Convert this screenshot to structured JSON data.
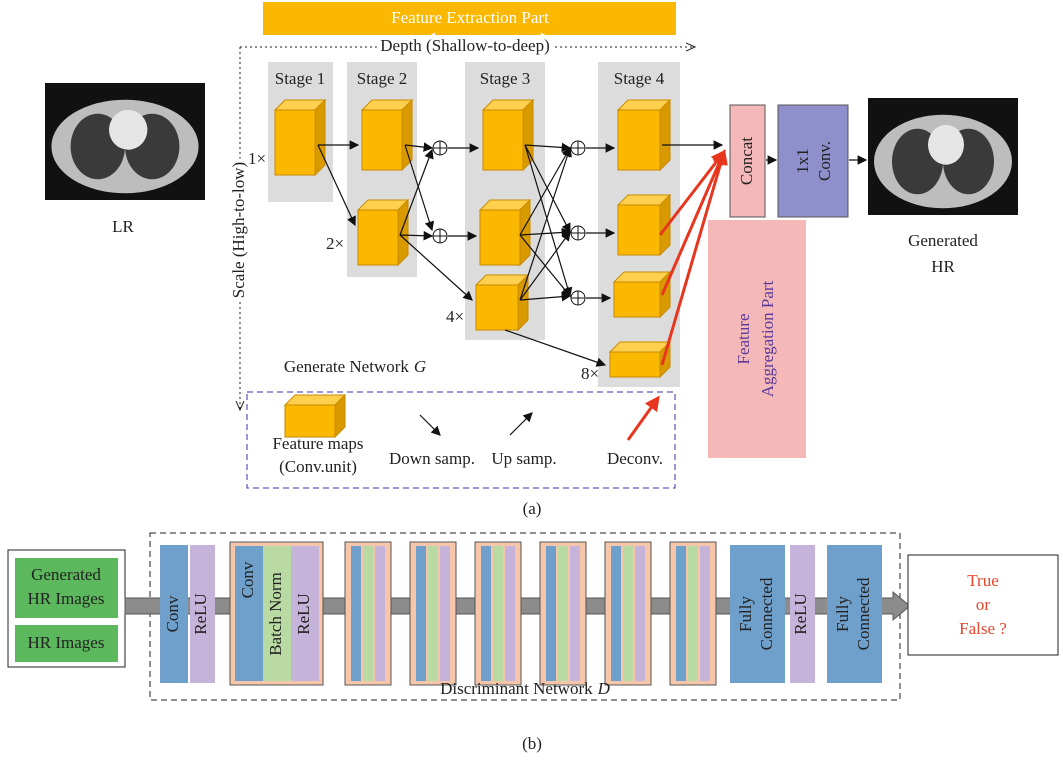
{
  "part_a": {
    "feature_extraction_label": "Feature Extraction Part",
    "depth_label": "Depth (Shallow-to-deep)",
    "scale_label": "Scale (High-to-low)",
    "stages": [
      "Stage 1",
      "Stage 2",
      "Stage 3",
      "Stage 4"
    ],
    "scales": [
      "1×",
      "2×",
      "4×",
      "8×"
    ],
    "input_label": "LR",
    "output_label": [
      "Generated",
      "HR"
    ],
    "concat": "Concat",
    "conv1x1": [
      "1x1",
      "Conv."
    ],
    "aggregation_label": [
      "Feature",
      "Aggregation Part"
    ],
    "network_label": {
      "text": "Generate Network",
      "symbol": "G"
    },
    "legend": {
      "feature_maps": [
        "Feature maps",
        "(Conv.unit)"
      ],
      "down": "Down samp.",
      "up": "Up samp.",
      "deconv": "Deconv."
    },
    "caption": "(a)"
  },
  "part_b": {
    "inputs": {
      "generated": [
        "Generated",
        "HR Images"
      ],
      "real": "HR Images"
    },
    "layers": {
      "conv1": "Conv",
      "relu1": "ReLU",
      "conv2": "Conv",
      "batch_norm": "Batch Norm",
      "relu2": "ReLU",
      "fc1": [
        "Fully",
        "Connected"
      ],
      "relu3": "ReLU",
      "fc2": [
        "Fully",
        "Connected"
      ]
    },
    "output": [
      "True",
      "or",
      "False ?"
    ],
    "network_label": {
      "text": "Discriminant Network",
      "symbol": "D"
    },
    "caption": "(b)"
  }
}
